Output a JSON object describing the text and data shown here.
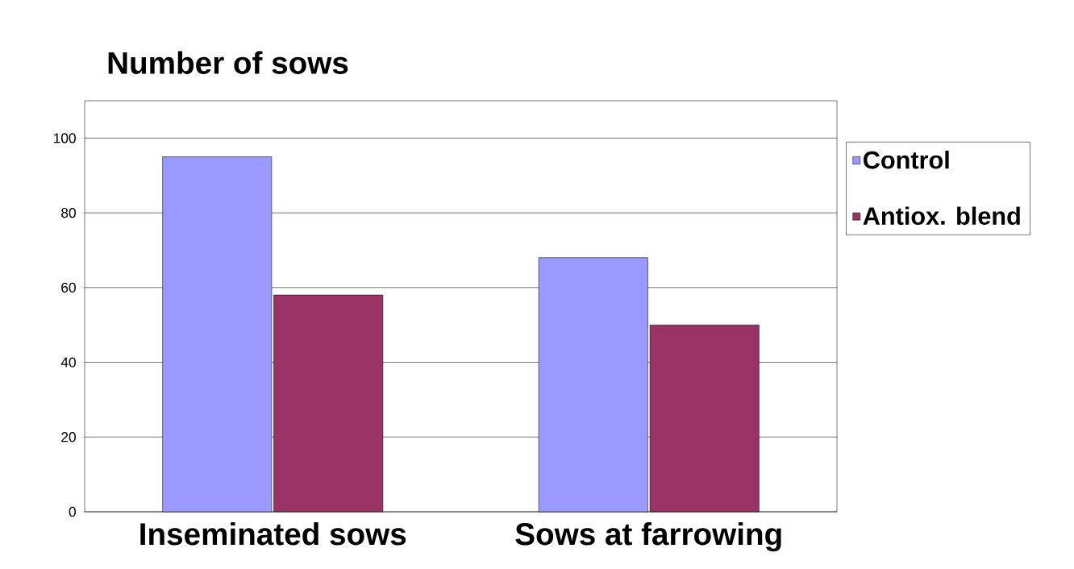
{
  "chart_data": {
    "type": "bar",
    "title": "Number of sows",
    "categories": [
      "Inseminated sows",
      "Sows at farrowing"
    ],
    "series": [
      {
        "name": "Control",
        "color": "#9999ff",
        "values": [
          95,
          68
        ]
      },
      {
        "name": "Antiox. blend",
        "color": "#993366",
        "values": [
          58,
          50
        ]
      }
    ],
    "ylim": [
      0,
      110
    ],
    "yticks": [
      0,
      20,
      40,
      60,
      80,
      100
    ],
    "grid": "y",
    "legend": "right"
  }
}
